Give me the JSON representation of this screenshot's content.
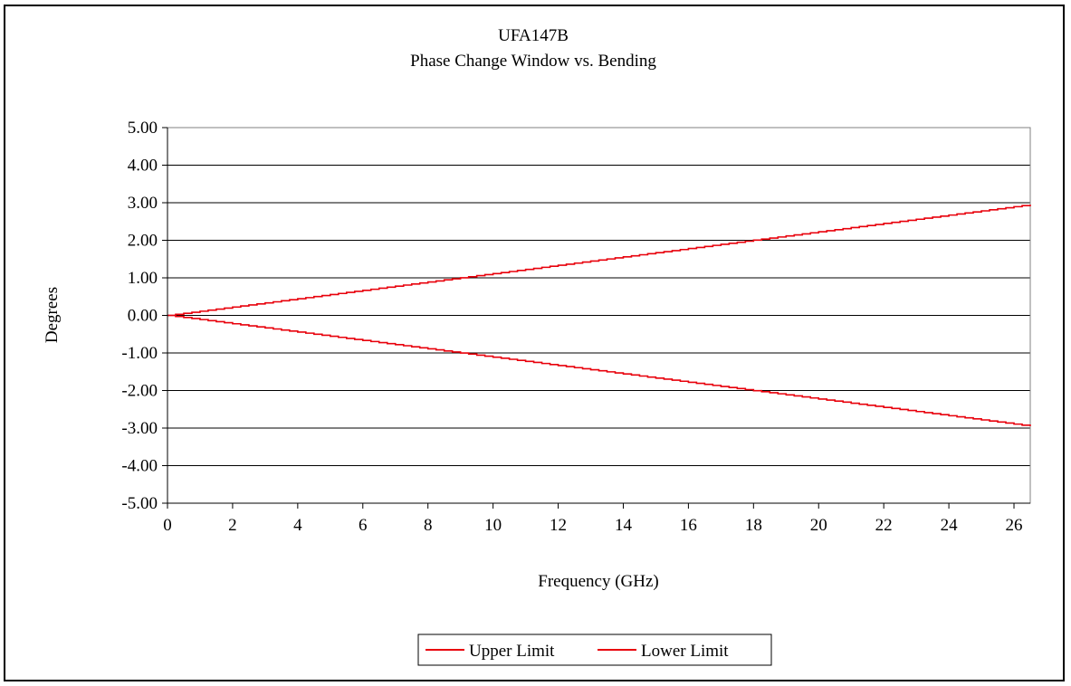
{
  "chart_data": {
    "type": "line",
    "title": "UFA147B",
    "subtitle": "Phase Change Window vs. Bending",
    "xlabel": "Frequency (GHz)",
    "ylabel": "Degrees",
    "xlim": [
      0,
      26.5
    ],
    "ylim": [
      -5,
      5
    ],
    "x_ticks": [
      "0",
      "2",
      "4",
      "6",
      "8",
      "10",
      "12",
      "14",
      "16",
      "18",
      "20",
      "22",
      "24",
      "26"
    ],
    "y_ticks": [
      "5.00",
      "4.00",
      "3.00",
      "2.00",
      "1.00",
      "0.00",
      "-1.00",
      "-2.00",
      "-3.00",
      "-4.00",
      "-5.00"
    ],
    "grid": "horizontal",
    "legend_position": "bottom",
    "series": [
      {
        "name": "Upper Limit",
        "color": "#e8000b",
        "x": [
          0,
          26.5
        ],
        "y": [
          0.0,
          2.95
        ],
        "step": 0.25
      },
      {
        "name": "Lower Limit",
        "color": "#e8000b",
        "x": [
          0,
          26.5
        ],
        "y": [
          0.0,
          -2.95
        ],
        "step": 0.25
      }
    ]
  }
}
